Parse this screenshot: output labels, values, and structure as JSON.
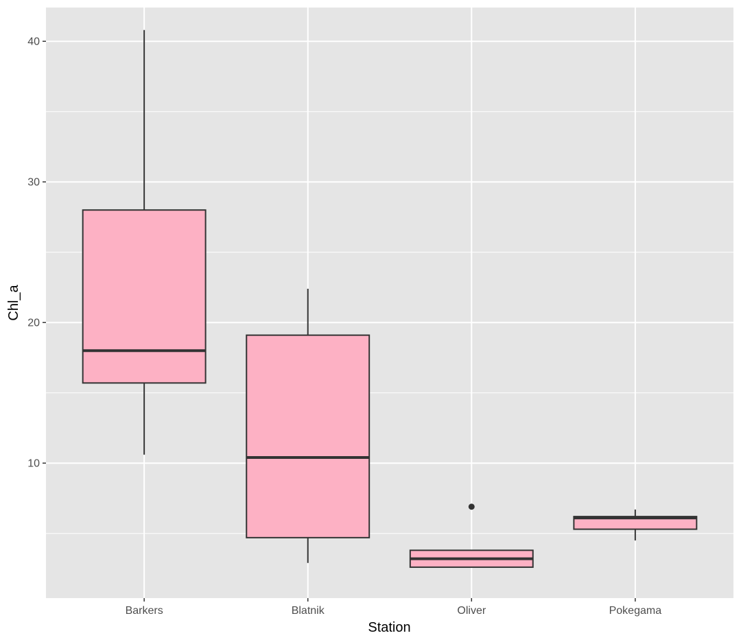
{
  "chart_data": {
    "type": "boxplot",
    "xlabel": "Station",
    "ylabel": "Chl_a",
    "categories": [
      "Barkers",
      "Blatnik",
      "Oliver",
      "Pokegama"
    ],
    "ylim": [
      0.4,
      42.4
    ],
    "y_ticks": [
      10,
      20,
      30,
      40
    ],
    "y_minor_ticks": [
      5,
      15,
      25,
      35
    ],
    "grid": true,
    "legend": "none",
    "boxes": [
      {
        "category": "Barkers",
        "whisker_low": 10.6,
        "q1": 15.7,
        "median": 18.0,
        "q3": 28.0,
        "whisker_high": 40.8,
        "outliers": []
      },
      {
        "category": "Blatnik",
        "whisker_low": 2.9,
        "q1": 4.7,
        "median": 10.4,
        "q3": 19.1,
        "whisker_high": 22.4,
        "outliers": []
      },
      {
        "category": "Oliver",
        "whisker_low": 2.6,
        "q1": 2.6,
        "median": 3.2,
        "q3": 3.8,
        "whisker_high": 3.8,
        "outliers": [
          6.9
        ]
      },
      {
        "category": "Pokegama",
        "whisker_low": 4.5,
        "q1": 5.3,
        "median": 6.1,
        "q3": 6.2,
        "whisker_high": 6.7,
        "outliers": []
      }
    ],
    "colors": {
      "panel_background": "#e5e5e5",
      "grid": "#ffffff",
      "box_fill": "#fdb1c4",
      "box_outline": "#333333",
      "axis_text": "#4d4d4d",
      "axis_title": "#000000"
    }
  }
}
